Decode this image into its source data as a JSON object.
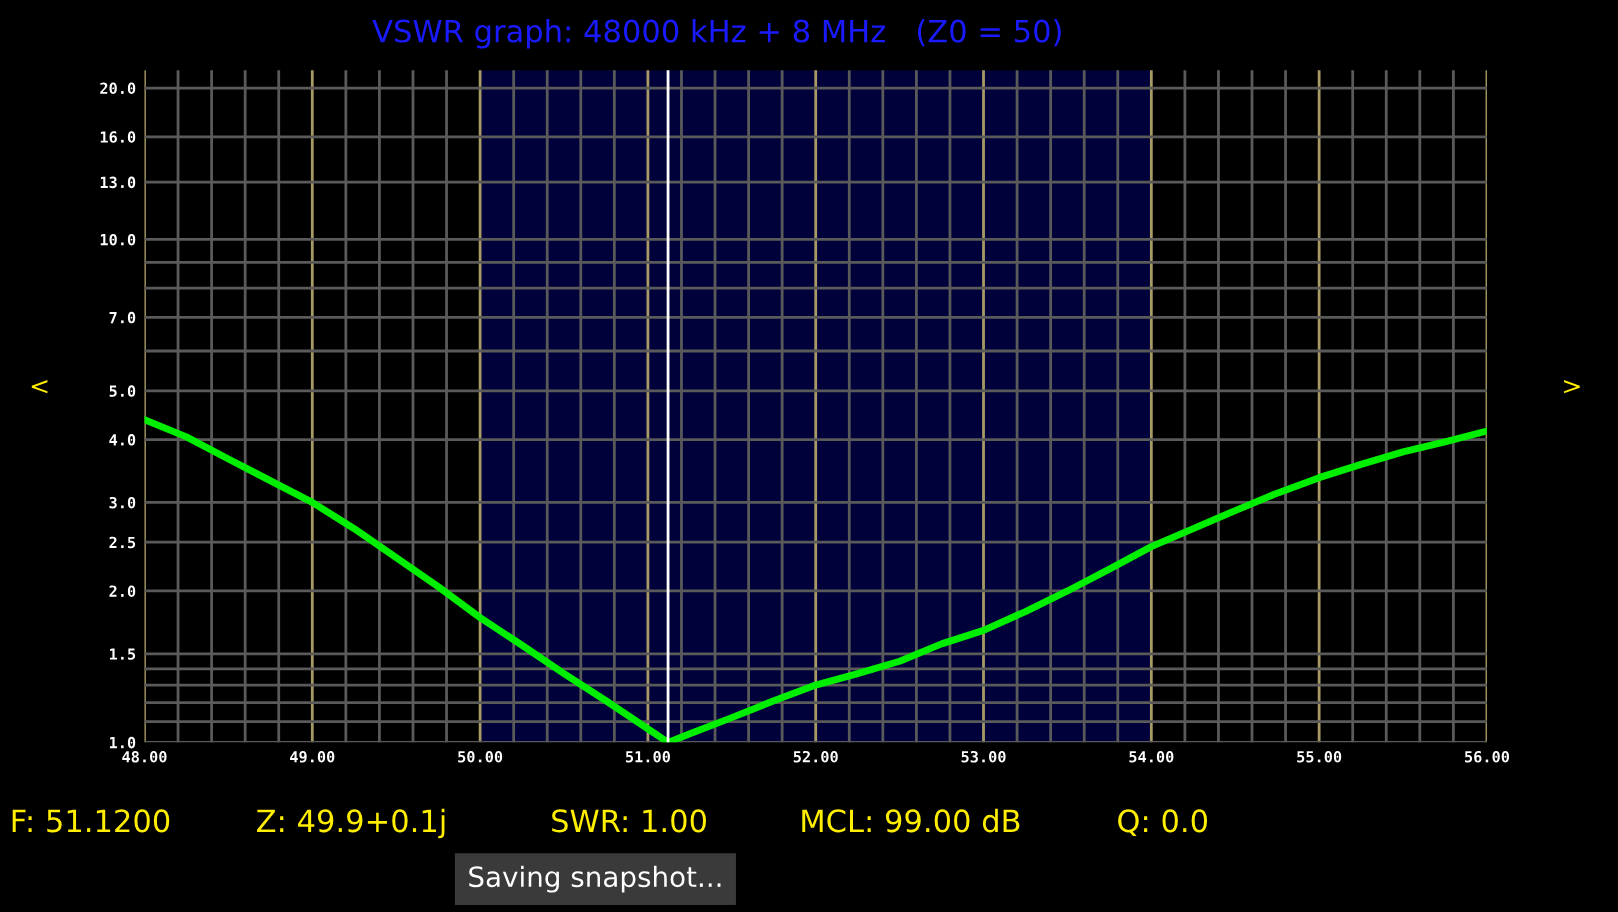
{
  "chart_data": {
    "type": "line",
    "title": "VSWR graph: 48000 kHz + 8 MHz   (Z0 = 50)",
    "x": [
      48,
      48.25,
      48.5,
      49,
      49.25,
      49.5,
      49.75,
      50,
      50.25,
      50.5,
      50.75,
      51.12,
      51.25,
      51.5,
      51.75,
      52,
      52.25,
      52.5,
      52.75,
      53,
      53.25,
      53.5,
      53.75,
      54,
      54.25,
      54.5,
      54.75,
      55,
      55.25,
      55.5,
      55.75,
      56
    ],
    "series": [
      {
        "color": "#00ee00",
        "values": [
          4.38,
          4.05,
          3.66,
          3.0,
          2.66,
          2.33,
          2.04,
          1.77,
          1.56,
          1.37,
          1.21,
          1.0,
          1.04,
          1.12,
          1.21,
          1.3,
          1.37,
          1.45,
          1.57,
          1.67,
          1.82,
          2.0,
          2.21,
          2.45,
          2.66,
          2.89,
          3.13,
          3.36,
          3.57,
          3.78,
          3.96,
          4.16
        ]
      }
    ],
    "log": "y",
    "xlim": [
      48,
      56
    ],
    "ylim": [
      1,
      21.7
    ],
    "xticks": [
      {
        "value": 48,
        "label": "48.00"
      },
      {
        "value": 48.2,
        "label": null
      },
      {
        "value": 48.4,
        "label": null
      },
      {
        "value": 48.6,
        "label": null
      },
      {
        "value": 48.8,
        "label": null
      },
      {
        "value": 49,
        "label": "49.00"
      },
      {
        "value": 49.2,
        "label": null
      },
      {
        "value": 49.4,
        "label": null
      },
      {
        "value": 49.6,
        "label": null
      },
      {
        "value": 49.8,
        "label": null
      },
      {
        "value": 50,
        "label": "50.00"
      },
      {
        "value": 50.2,
        "label": null
      },
      {
        "value": 50.4,
        "label": null
      },
      {
        "value": 50.6,
        "label": null
      },
      {
        "value": 50.8,
        "label": null
      },
      {
        "value": 51,
        "label": "51.00"
      },
      {
        "value": 51.2,
        "label": null
      },
      {
        "value": 51.4,
        "label": null
      },
      {
        "value": 51.6,
        "label": null
      },
      {
        "value": 51.8,
        "label": null
      },
      {
        "value": 52,
        "label": "52.00"
      },
      {
        "value": 52.2,
        "label": null
      },
      {
        "value": 52.4,
        "label": null
      },
      {
        "value": 52.6,
        "label": null
      },
      {
        "value": 52.8,
        "label": null
      },
      {
        "value": 53,
        "label": "53.00"
      },
      {
        "value": 53.2,
        "label": null
      },
      {
        "value": 53.4,
        "label": null
      },
      {
        "value": 53.6,
        "label": null
      },
      {
        "value": 53.8,
        "label": null
      },
      {
        "value": 54,
        "label": "54.00"
      },
      {
        "value": 54.2,
        "label": null
      },
      {
        "value": 54.4,
        "label": null
      },
      {
        "value": 54.6,
        "label": null
      },
      {
        "value": 54.8,
        "label": null
      },
      {
        "value": 55,
        "label": "55.00"
      },
      {
        "value": 55.2,
        "label": null
      },
      {
        "value": 55.4,
        "label": null
      },
      {
        "value": 55.6,
        "label": null
      },
      {
        "value": 55.8,
        "label": null
      },
      {
        "value": 56,
        "label": "56.00"
      }
    ],
    "yticks": [
      {
        "value": 1,
        "label": "1.0"
      },
      {
        "value": 1.1,
        "label": null
      },
      {
        "value": 1.2,
        "label": null
      },
      {
        "value": 1.3,
        "label": null
      },
      {
        "value": 1.4,
        "label": null
      },
      {
        "value": 1.5,
        "label": "1.5"
      },
      {
        "value": 2,
        "label": "2.0"
      },
      {
        "value": 2.5,
        "label": "2.5"
      },
      {
        "value": 3,
        "label": "3.0"
      },
      {
        "value": 4,
        "label": "4.0"
      },
      {
        "value": 5,
        "label": "5.0"
      },
      {
        "value": 6,
        "label": null
      },
      {
        "value": 7,
        "label": "7.0"
      },
      {
        "value": 8,
        "label": null
      },
      {
        "value": 9,
        "label": null
      },
      {
        "value": 10,
        "label": "10.0"
      },
      {
        "value": 13,
        "label": "13.0"
      },
      {
        "value": 16,
        "label": "16.0"
      },
      {
        "value": 20,
        "label": "20.0"
      }
    ],
    "grid": true,
    "marker": "none",
    "line_style": "solid",
    "bands": [
      {
        "axis": "x",
        "from": 50,
        "to": 54,
        "color": "#00003a"
      }
    ],
    "ref_lines": [
      {
        "axis": "x",
        "value": 51.12,
        "color": "#ffffff",
        "line_style": "solid"
      }
    ],
    "annotations": [
      "<",
      ">",
      "F: 51.1200",
      "Z: 49.9+0.1j",
      "SWR: 1.00",
      "MCL: 99.00 dB",
      "Q: 0.0",
      "Saving snapshot..."
    ]
  }
}
